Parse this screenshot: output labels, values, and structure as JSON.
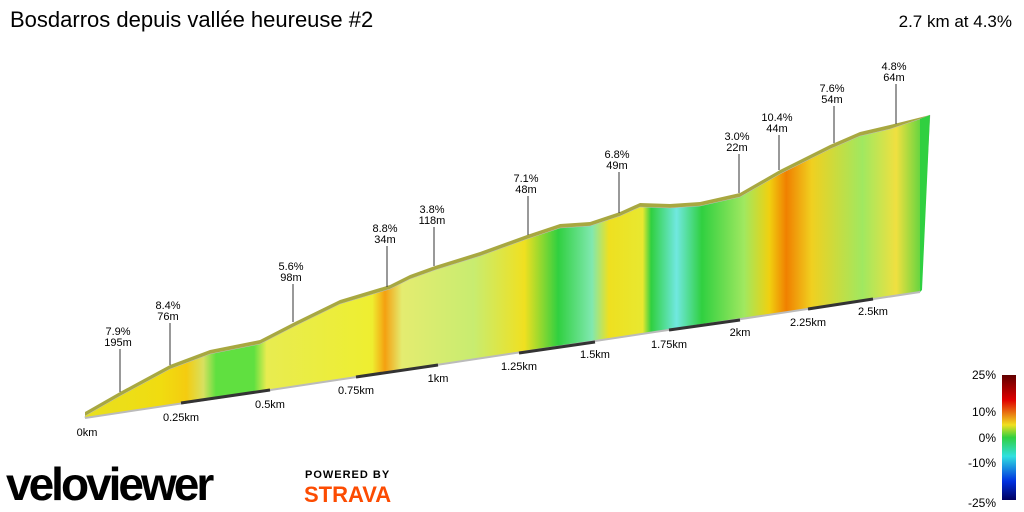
{
  "header": {
    "title": "Bosdarros depuis vallée heureuse #2",
    "summary": "2.7 km at 4.3%"
  },
  "annotations": [
    {
      "grade": "7.9%",
      "length": "195m"
    },
    {
      "grade": "8.4%",
      "length": "76m"
    },
    {
      "grade": "5.6%",
      "length": "98m"
    },
    {
      "grade": "8.8%",
      "length": "34m"
    },
    {
      "grade": "3.8%",
      "length": "118m"
    },
    {
      "grade": "7.1%",
      "length": "48m"
    },
    {
      "grade": "6.8%",
      "length": "49m"
    },
    {
      "grade": "3.0%",
      "length": "22m"
    },
    {
      "grade": "10.4%",
      "length": "44m"
    },
    {
      "grade": "7.6%",
      "length": "54m"
    },
    {
      "grade": "4.8%",
      "length": "64m"
    }
  ],
  "distance_labels": [
    "0km",
    "0.25km",
    "0.5km",
    "0.75km",
    "1km",
    "1.25km",
    "1.5km",
    "1.75km",
    "2km",
    "2.25km",
    "2.5km"
  ],
  "legend_labels": [
    "25%",
    "10%",
    "0%",
    "-10%",
    "-25%"
  ],
  "branding": {
    "logo": "veloviewer",
    "powered": "POWERED BY",
    "partner": "STRAVA"
  }
}
